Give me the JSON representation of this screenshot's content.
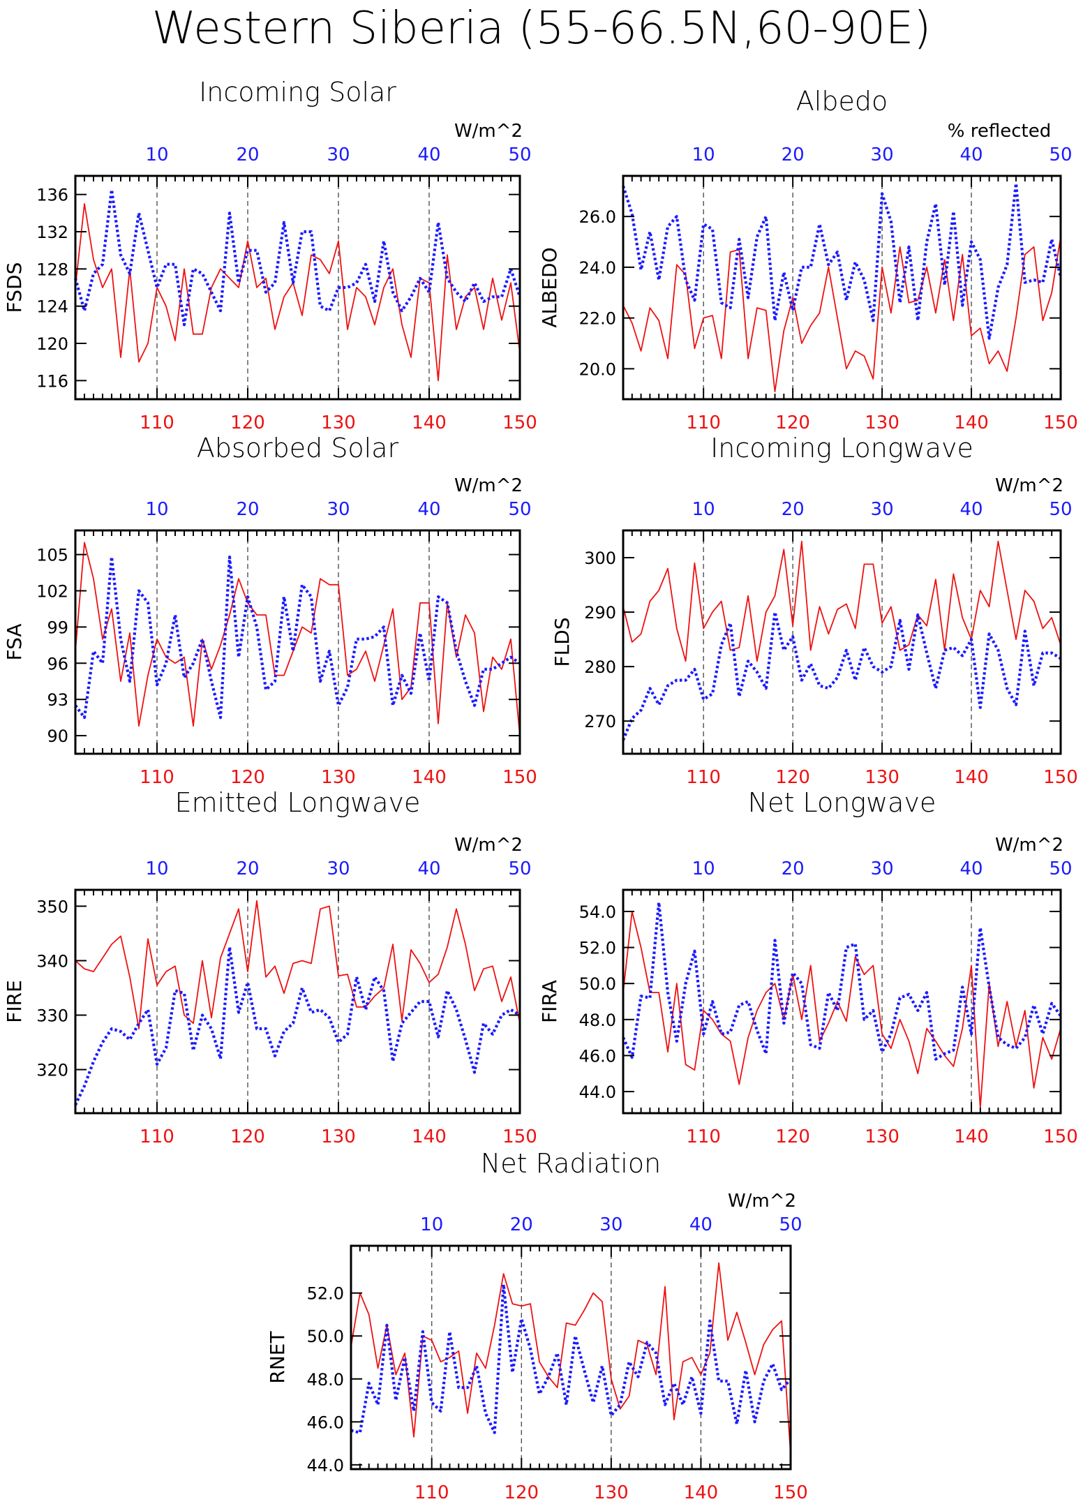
{
  "title": "Western Siberia (55-66.5N,60-90E)",
  "colors": {
    "red": "#ee1111",
    "blue": "#1a1aff",
    "axis": "#000000",
    "grid": "#444444"
  },
  "bottom_axis": {
    "range": [
      101,
      150
    ],
    "ticks": [
      110,
      120,
      130,
      140,
      150
    ]
  },
  "top_axis": {
    "range": [
      1,
      50
    ],
    "ticks": [
      10,
      20,
      30,
      40,
      50
    ]
  },
  "chart_data": [
    {
      "id": "fsds",
      "type": "line",
      "title": "Incoming Solar",
      "ylabel": "FSDS",
      "units": "W/m^2",
      "ylim": [
        114,
        138
      ],
      "yticks": [
        116,
        120,
        124,
        128,
        132,
        136
      ],
      "ytick_decimals": 0,
      "series": [
        {
          "color": "red",
          "style": "solid",
          "values": [
            126,
            135,
            129,
            126,
            128,
            118.5,
            128,
            118,
            120,
            126,
            124,
            120.3,
            128,
            121,
            121,
            126,
            128,
            127,
            126,
            131,
            126,
            127,
            121.5,
            125,
            126.5,
            123,
            129.5,
            129,
            127.5,
            131,
            121.5,
            126,
            125,
            122,
            126,
            128,
            122,
            118.5,
            127,
            126.5,
            116,
            129.5,
            121.5,
            125,
            126,
            121.5,
            127,
            122.5,
            126.5,
            119
          ]
        },
        {
          "color": "blue",
          "style": "dotted",
          "values": [
            127,
            123.5,
            127.5,
            128.5,
            136.5,
            129.5,
            127.5,
            134,
            130,
            126,
            128.5,
            128.5,
            122,
            128,
            127.5,
            125.5,
            123.5,
            134,
            126.5,
            130,
            130,
            125.5,
            126.5,
            133,
            126.5,
            132,
            132,
            124,
            123.5,
            126,
            126,
            126.5,
            128.5,
            124.5,
            131,
            125.5,
            123.5,
            125,
            127,
            125.5,
            133,
            127,
            125.5,
            124.5,
            126.5,
            124.5,
            125,
            125,
            128,
            125
          ]
        }
      ]
    },
    {
      "id": "albedo",
      "type": "line",
      "title": "Albedo",
      "ylabel": "ALBEDO",
      "units": "% reflected",
      "ylim": [
        18.8,
        27.6
      ],
      "yticks": [
        20.0,
        22.0,
        24.0,
        26.0
      ],
      "ytick_decimals": 1,
      "series": [
        {
          "color": "red",
          "style": "solid",
          "values": [
            22.5,
            21.8,
            20.7,
            22.4,
            21.9,
            20.4,
            24.1,
            23.7,
            20.8,
            22.0,
            22.1,
            20.4,
            24.6,
            24.7,
            20.4,
            22.4,
            22.3,
            19.1,
            21.5,
            22.8,
            21.0,
            21.7,
            22.2,
            24.0,
            22.0,
            20.0,
            20.7,
            20.5,
            19.6,
            24.0,
            22.2,
            24.8,
            22.6,
            22.7,
            24.0,
            22.2,
            24.3,
            21.9,
            24.5,
            21.3,
            21.6,
            20.2,
            20.7,
            19.9,
            22.0,
            24.5,
            24.8,
            21.9,
            23.0,
            25.2
          ]
        },
        {
          "color": "blue",
          "style": "dotted",
          "values": [
            27.2,
            26.1,
            23.9,
            25.4,
            23.5,
            25.6,
            26.0,
            23.5,
            22.7,
            25.7,
            25.5,
            22.6,
            22.4,
            25.1,
            22.8,
            25.2,
            26.0,
            21.9,
            23.8,
            22.3,
            24.0,
            24.0,
            25.7,
            24.1,
            24.6,
            22.7,
            24.2,
            23.5,
            21.9,
            26.9,
            25.8,
            22.6,
            24.8,
            21.9,
            25.0,
            26.5,
            23.3,
            26.2,
            22.5,
            25.0,
            24.3,
            21.2,
            23.2,
            24.1,
            27.3,
            23.4,
            23.5,
            23.4,
            25.1,
            23.6
          ]
        }
      ]
    },
    {
      "id": "fsa",
      "type": "line",
      "title": "Absorbed Solar",
      "ylabel": "FSA",
      "units": "W/m^2",
      "ylim": [
        88.5,
        107
      ],
      "yticks": [
        90,
        93,
        96,
        99,
        102,
        105
      ],
      "ytick_decimals": 0,
      "series": [
        {
          "color": "red",
          "style": "solid",
          "values": [
            97,
            106,
            103,
            98,
            100.5,
            94.5,
            98.5,
            90.8,
            95,
            98,
            96.5,
            96,
            96.5,
            90.8,
            98,
            95.5,
            97.5,
            100,
            103,
            101,
            100,
            100,
            95,
            95,
            97,
            99,
            98.5,
            103,
            102.5,
            102.5,
            95,
            95.5,
            97,
            94.5,
            97.5,
            100.5,
            93,
            94,
            101,
            101,
            91,
            101,
            96.5,
            100,
            98.5,
            92,
            96.5,
            95.5,
            98,
            90
          ]
        },
        {
          "color": "blue",
          "style": "dotted",
          "values": [
            92.5,
            91.5,
            97,
            96,
            104.8,
            98,
            94.5,
            102,
            101,
            94.2,
            96,
            100,
            94.8,
            96,
            98,
            94.5,
            91.5,
            104.8,
            96.5,
            101.5,
            99,
            93.8,
            94.5,
            101.5,
            97,
            102.5,
            101.5,
            94.5,
            97,
            92.5,
            94,
            98,
            98,
            98.2,
            99,
            92.5,
            95,
            93.5,
            98.5,
            94.5,
            101.5,
            101,
            97,
            94.5,
            92.5,
            95.5,
            95.5,
            96,
            96.5,
            96
          ]
        }
      ]
    },
    {
      "id": "flds",
      "type": "line",
      "title": "Incoming Longwave",
      "ylabel": "FLDS",
      "units": "W/m^2",
      "ylim": [
        264,
        305
      ],
      "yticks": [
        270,
        280,
        290,
        300
      ],
      "ytick_decimals": 0,
      "series": [
        {
          "color": "red",
          "style": "solid",
          "values": [
            291,
            284.5,
            286,
            292,
            294,
            298,
            287,
            281,
            299,
            287,
            290,
            292,
            283,
            283.5,
            293,
            281,
            290,
            293,
            301.5,
            287.5,
            303,
            283,
            291,
            286,
            290.5,
            291.5,
            287,
            298.8,
            298.8,
            288,
            291,
            283,
            284,
            289.5,
            287.5,
            296,
            283,
            297,
            289,
            285,
            294,
            291,
            303,
            294,
            285,
            294,
            292,
            287,
            289,
            284
          ]
        },
        {
          "color": "blue",
          "style": "dotted",
          "values": [
            266.5,
            270.5,
            272,
            276,
            273,
            276.5,
            277.5,
            277.5,
            279.5,
            274,
            275,
            284,
            288,
            274.5,
            281,
            279,
            276,
            290,
            283,
            285.5,
            277.5,
            280.5,
            276.5,
            276,
            278,
            283,
            277.5,
            283.5,
            280,
            279,
            280,
            288.5,
            279.5,
            289.5,
            282.5,
            276,
            283,
            283.5,
            282,
            285,
            272.5,
            286,
            283,
            276,
            273,
            286.5,
            276.5,
            282.5,
            282.5,
            281.5
          ]
        }
      ]
    },
    {
      "id": "fire",
      "type": "line",
      "title": "Emitted Longwave",
      "ylabel": "FIRE",
      "units": "W/m^2",
      "ylim": [
        312,
        353
      ],
      "yticks": [
        320,
        330,
        340,
        350
      ],
      "ytick_decimals": 0,
      "series": [
        {
          "color": "red",
          "style": "solid",
          "values": [
            340,
            338.5,
            338,
            340.5,
            343,
            344.5,
            337,
            327.5,
            344,
            335.5,
            338,
            339,
            330,
            328.5,
            340,
            329.5,
            340.5,
            345,
            349.5,
            338,
            351,
            337,
            339,
            334,
            339.5,
            340,
            339.5,
            349.5,
            350,
            337.2,
            337.5,
            331.5,
            331.5,
            333.5,
            335,
            343,
            329,
            342,
            339.5,
            336,
            337.5,
            342.5,
            349.5,
            343,
            334.5,
            338.5,
            339,
            332.5,
            337,
            328.5
          ]
        },
        {
          "color": "blue",
          "style": "dotted",
          "values": [
            313.5,
            317,
            321.5,
            325,
            327.5,
            327,
            325.5,
            328.5,
            331,
            321,
            324,
            334.5,
            334,
            323.5,
            330,
            327.5,
            322,
            342.5,
            330.5,
            336,
            327.5,
            327.5,
            322.5,
            327,
            328.5,
            335,
            330.5,
            331,
            329.5,
            325,
            326.5,
            337,
            331,
            337,
            334.5,
            321.5,
            328.5,
            330.5,
            332.5,
            332.5,
            326,
            334.5,
            331,
            325.5,
            319.5,
            328.5,
            326.5,
            330,
            331,
            330
          ]
        }
      ]
    },
    {
      "id": "fira",
      "type": "line",
      "title": "Net Longwave",
      "ylabel": "FIRA",
      "units": "W/m^2",
      "ylim": [
        42.8,
        55.2
      ],
      "yticks": [
        44.0,
        46.0,
        48.0,
        50.0,
        52.0,
        54.0
      ],
      "ytick_decimals": 1,
      "series": [
        {
          "color": "red",
          "style": "solid",
          "values": [
            49.5,
            54.0,
            52.0,
            49.5,
            49.5,
            46.2,
            50.0,
            45.5,
            45.2,
            48.5,
            48.0,
            47.2,
            46.8,
            44.4,
            47.0,
            48.5,
            49.5,
            50.0,
            48.0,
            50.5,
            48.0,
            51.0,
            46.8,
            47.8,
            49.0,
            47.9,
            51.5,
            50.5,
            51.0,
            47.2,
            46.4,
            48.0,
            46.8,
            45.0,
            47.5,
            46.8,
            46.0,
            45.4,
            47.5,
            51.0,
            43.1,
            50.0,
            46.5,
            49.0,
            46.5,
            48.5,
            44.2,
            47.0,
            45.8,
            47.5
          ]
        },
        {
          "color": "blue",
          "style": "dotted",
          "values": [
            47.0,
            45.9,
            49.3,
            49.2,
            54.5,
            49.5,
            46.8,
            50.0,
            51.8,
            47.2,
            49.0,
            47.2,
            47.3,
            48.8,
            49.0,
            47.4,
            46.1,
            52.4,
            47.8,
            50.6,
            50.0,
            46.6,
            46.4,
            49.5,
            48.5,
            52.0,
            52.2,
            48.0,
            48.5,
            46.2,
            47.2,
            49.2,
            49.4,
            48.5,
            49.5,
            45.8,
            46.1,
            46.3,
            49.8,
            47.2,
            53.1,
            49.8,
            47.0,
            46.6,
            46.4,
            47.0,
            48.8,
            47.2,
            48.9,
            48.2
          ]
        }
      ]
    },
    {
      "id": "rnet",
      "type": "line",
      "title": "Net Radiation",
      "ylabel": "RNET",
      "units": "W/m^2",
      "ylim": [
        43.8,
        54.2
      ],
      "yticks": [
        44.0,
        46.0,
        48.0,
        50.0,
        52.0
      ],
      "ytick_decimals": 1,
      "series": [
        {
          "color": "red",
          "style": "solid",
          "values": [
            49.5,
            52.0,
            51.0,
            48.5,
            50.5,
            48.2,
            49.2,
            45.3,
            50.0,
            49.8,
            48.8,
            49.0,
            49.3,
            46.4,
            49.2,
            48.5,
            50.5,
            52.9,
            51.5,
            51.4,
            51.5,
            48.8,
            48.1,
            47.6,
            50.6,
            50.5,
            51.2,
            52.0,
            51.6,
            48.0,
            46.6,
            47.2,
            49.8,
            49.6,
            48.2,
            52.3,
            46.1,
            48.8,
            49.0,
            48.2,
            49.2,
            53.4,
            49.8,
            51.1,
            49.7,
            48.2,
            49.6,
            50.3,
            50.7,
            44.5
          ]
        },
        {
          "color": "blue",
          "style": "dotted",
          "values": [
            45.6,
            45.5,
            47.8,
            46.8,
            50.5,
            47.0,
            49.0,
            46.5,
            50.2,
            46.9,
            46.5,
            50.2,
            47.6,
            47.6,
            48.6,
            46.4,
            45.5,
            52.4,
            48.3,
            50.8,
            49.4,
            47.3,
            48.1,
            49.2,
            46.8,
            50.0,
            48.4,
            46.9,
            48.6,
            46.3,
            46.8,
            48.8,
            48.1,
            49.7,
            49.2,
            46.8,
            47.8,
            46.8,
            48.1,
            46.4,
            50.7,
            47.9,
            47.9,
            45.9,
            48.4,
            46.0,
            47.9,
            48.7,
            47.5,
            48.0
          ]
        }
      ]
    }
  ]
}
